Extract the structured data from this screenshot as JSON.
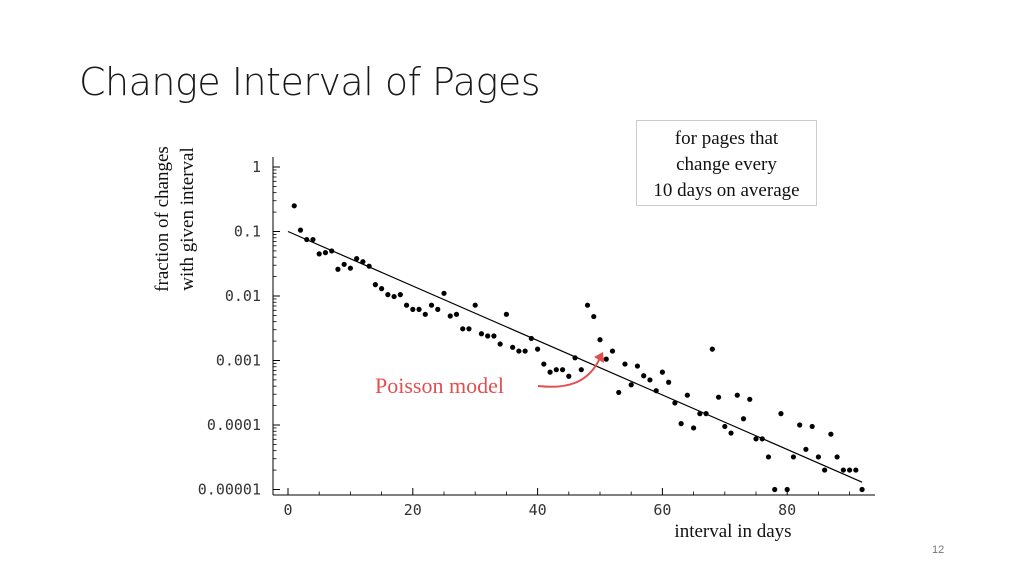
{
  "slide": {
    "title": "Change Interval of Pages",
    "page_number": "12"
  },
  "chart_data": {
    "type": "scatter",
    "ylabel_lines": [
      "fraction of changes",
      "with given interval"
    ],
    "xlabel": "interval in days",
    "legend_lines": [
      "for pages that",
      "change every",
      "10 days on average"
    ],
    "annotation": "Poisson model",
    "x_ticks": [
      0,
      20,
      40,
      60,
      80
    ],
    "x_tick_labels": [
      "0",
      "20",
      "40",
      "60",
      "80"
    ],
    "y_ticks": [
      1,
      0.1,
      0.01,
      0.001,
      0.0001,
      1e-05
    ],
    "y_tick_labels": [
      "1",
      "0.1",
      "0.01",
      "0.001",
      "0.0001",
      "0.00001"
    ],
    "y_scale": "log",
    "xlim": [
      -2,
      94
    ],
    "ylim": [
      1e-05,
      1.5
    ],
    "grid": false,
    "model_line": {
      "name": "Poisson model",
      "x": [
        0,
        92
      ],
      "y": [
        0.1,
        1.3e-05
      ]
    },
    "points": [
      [
        1,
        0.25
      ],
      [
        2,
        0.105
      ],
      [
        3,
        0.075
      ],
      [
        4,
        0.075
      ],
      [
        5,
        0.045
      ],
      [
        6,
        0.047
      ],
      [
        7,
        0.05
      ],
      [
        8,
        0.026
      ],
      [
        9,
        0.031
      ],
      [
        10,
        0.027
      ],
      [
        11,
        0.038
      ],
      [
        12,
        0.034
      ],
      [
        13,
        0.029
      ],
      [
        14,
        0.015
      ],
      [
        15,
        0.013
      ],
      [
        16,
        0.0105
      ],
      [
        17,
        0.0098
      ],
      [
        18,
        0.0105
      ],
      [
        19,
        0.0072
      ],
      [
        20,
        0.0062
      ],
      [
        21,
        0.0062
      ],
      [
        22,
        0.0052
      ],
      [
        23,
        0.0072
      ],
      [
        24,
        0.0062
      ],
      [
        25,
        0.011
      ],
      [
        26,
        0.0049
      ],
      [
        27,
        0.0052
      ],
      [
        28,
        0.0031
      ],
      [
        29,
        0.0031
      ],
      [
        30,
        0.0072
      ],
      [
        31,
        0.0026
      ],
      [
        32,
        0.0024
      ],
      [
        33,
        0.0024
      ],
      [
        34,
        0.0018
      ],
      [
        35,
        0.0052
      ],
      [
        36,
        0.0016
      ],
      [
        37,
        0.0014
      ],
      [
        38,
        0.0014
      ],
      [
        39,
        0.0022
      ],
      [
        40,
        0.0015
      ],
      [
        41,
        0.00088
      ],
      [
        42,
        0.00066
      ],
      [
        43,
        0.00072
      ],
      [
        44,
        0.00072
      ],
      [
        45,
        0.00057
      ],
      [
        46,
        0.0011
      ],
      [
        47,
        0.00072
      ],
      [
        48,
        0.0072
      ],
      [
        49,
        0.0048
      ],
      [
        50,
        0.0021
      ],
      [
        51,
        0.00105
      ],
      [
        52,
        0.0014
      ],
      [
        53,
        0.00032
      ],
      [
        54,
        0.00088
      ],
      [
        55,
        0.00042
      ],
      [
        56,
        0.00082
      ],
      [
        57,
        0.00058
      ],
      [
        58,
        0.0005
      ],
      [
        59,
        0.00034
      ],
      [
        60,
        0.00066
      ],
      [
        61,
        0.00046
      ],
      [
        62,
        0.00022
      ],
      [
        63,
        0.000105
      ],
      [
        64,
        0.00029
      ],
      [
        65,
        9e-05
      ],
      [
        66,
        0.00015
      ],
      [
        67,
        0.00015
      ],
      [
        68,
        0.0015
      ],
      [
        69,
        0.00027
      ],
      [
        70,
        9.5e-05
      ],
      [
        71,
        7.5e-05
      ],
      [
        72,
        0.00029
      ],
      [
        73,
        0.000125
      ],
      [
        74,
        0.00025
      ],
      [
        75,
        6.1e-05
      ],
      [
        76,
        6.1e-05
      ],
      [
        77,
        3.2e-05
      ],
      [
        78,
        1e-05
      ],
      [
        79,
        0.00015
      ],
      [
        80,
        1e-05
      ],
      [
        81,
        3.2e-05
      ],
      [
        82,
        0.0001
      ],
      [
        83,
        4.2e-05
      ],
      [
        84,
        9.5e-05
      ],
      [
        85,
        3.2e-05
      ],
      [
        86,
        2e-05
      ],
      [
        87,
        7.2e-05
      ],
      [
        88,
        3.2e-05
      ],
      [
        89,
        2e-05
      ],
      [
        90,
        2e-05
      ],
      [
        91,
        2e-05
      ],
      [
        92,
        1e-05
      ]
    ],
    "colors": {
      "points": "#000000",
      "line": "#000000",
      "annotation": "#e05050",
      "axis": "#000000"
    }
  }
}
